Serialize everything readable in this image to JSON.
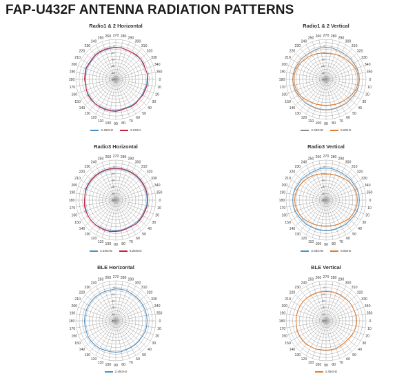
{
  "title": "FAP-U432F ANTENNA RADIATION PATTERNS",
  "colors": {
    "blue": "#4a90c8",
    "red": "#c8203e",
    "orange": "#e07b2e",
    "gray": "#8a8a8a",
    "grid": "#999999"
  },
  "axis": {
    "angle_labels": [
      "0",
      "10",
      "20",
      "30",
      "40",
      "50",
      "60",
      "70",
      "80",
      "90",
      "100",
      "110",
      "120",
      "130",
      "140",
      "150",
      "160",
      "170",
      "180",
      "190",
      "200",
      "210",
      "220",
      "230",
      "240",
      "250",
      "260",
      "270",
      "280",
      "290",
      "300",
      "310",
      "320",
      "330",
      "340",
      "350"
    ],
    "radial_labels": [
      "-50",
      "-40",
      "-30",
      "-20",
      "-10",
      "0"
    ]
  },
  "chart_data": [
    {
      "type": "polar",
      "title": "Radio1 & 2 Horizontal",
      "rlim": [
        -50,
        10
      ],
      "series": [
        {
          "name": "2.45GHz",
          "color": "#4a90c8",
          "values": [
            -3,
            -3,
            -4,
            -4,
            -4,
            -4,
            -4,
            -5,
            -4,
            -3,
            -3,
            -3,
            -3,
            -2,
            -3,
            -3,
            -3,
            -4,
            -4,
            -4,
            -3,
            -4,
            -4,
            -3,
            -3,
            -3,
            -3,
            -2,
            -2,
            -3,
            -3,
            -3,
            -2,
            -3,
            -3,
            -2
          ]
        },
        {
          "name": "5.6GHz",
          "color": "#c8203e",
          "values": [
            -2,
            -2,
            -3,
            -3,
            -4,
            -3,
            -3,
            -4,
            -3,
            -2,
            -2,
            -2,
            -2,
            -2,
            -2,
            -2,
            -3,
            -4,
            -3,
            -3,
            -2,
            -3,
            -3,
            -2,
            -2,
            -2,
            -2,
            -2,
            -2,
            -3,
            -3,
            -2,
            -2,
            -2,
            -3,
            -2
          ]
        }
      ]
    },
    {
      "type": "polar",
      "title": "Radio1 & 2 Vertical",
      "rlim": [
        -50,
        10
      ],
      "series": [
        {
          "name": "2.45GHz",
          "color": "#8a8a8a",
          "values": [
            0,
            0,
            -1,
            -2,
            -3,
            -3,
            -4,
            -4,
            -4,
            -4,
            -4,
            -4,
            -4,
            -3,
            -3,
            -2,
            -1,
            0,
            0,
            0,
            -1,
            -2,
            -2,
            -3,
            -3,
            -3,
            -2,
            -2,
            -2,
            -3,
            -3,
            -3,
            -2,
            -2,
            -1,
            0
          ]
        },
        {
          "name": "5.6GHz",
          "color": "#e07b2e",
          "values": [
            -2,
            -2,
            -3,
            -5,
            -7,
            -8,
            -9,
            -10,
            -11,
            -11,
            -11,
            -10,
            -9,
            -8,
            -6,
            -4,
            -3,
            -2,
            -2,
            -2,
            -3,
            -4,
            -6,
            -7,
            -8,
            -9,
            -10,
            -11,
            -11,
            -10,
            -9,
            -8,
            -7,
            -5,
            -3,
            -2
          ]
        }
      ]
    },
    {
      "type": "polar",
      "title": "Radio3 Horizontal",
      "rlim": [
        -50,
        10
      ],
      "series": [
        {
          "name": "2.45GHz",
          "color": "#4a90c8",
          "values": [
            -3,
            -3,
            -4,
            -4,
            -4,
            -5,
            -5,
            -5,
            -4,
            -4,
            -3,
            -3,
            -3,
            -2,
            -2,
            -2,
            -3,
            -3,
            -3,
            -3,
            -3,
            -3,
            -3,
            -3,
            -3,
            -3,
            -3,
            -3,
            -3,
            -3,
            -3,
            -3,
            -3,
            -3,
            -3,
            -3
          ]
        },
        {
          "name": "5.25GHz",
          "color": "#c8203e",
          "values": [
            -2,
            -2,
            -3,
            -3,
            -3,
            -3,
            -4,
            -4,
            -3,
            -3,
            -2,
            -2,
            -2,
            -2,
            -2,
            -2,
            -2,
            -2,
            -3,
            -3,
            -2,
            -2,
            -2,
            -2,
            -2,
            -2,
            -2,
            -2,
            -2,
            -2,
            -2,
            -2,
            -2,
            -2,
            -2,
            -2
          ]
        }
      ]
    },
    {
      "type": "polar",
      "title": "Radio3 Vertical",
      "rlim": [
        -50,
        10
      ],
      "series": [
        {
          "name": "2.45GHz",
          "color": "#4a90c8",
          "values": [
            0,
            0,
            -1,
            -2,
            -3,
            -3,
            -4,
            -4,
            -4,
            -4,
            -4,
            -4,
            -4,
            -3,
            -3,
            -2,
            -1,
            0,
            0,
            0,
            -1,
            -2,
            -2,
            -3,
            -3,
            -3,
            -2,
            -2,
            -2,
            -3,
            -3,
            -3,
            -2,
            -2,
            -1,
            0
          ]
        },
        {
          "name": "5.6GHz",
          "color": "#e07b2e",
          "values": [
            -3,
            -3,
            -4,
            -5,
            -6,
            -8,
            -9,
            -10,
            -11,
            -11,
            -11,
            -10,
            -9,
            -8,
            -6,
            -5,
            -4,
            -3,
            -3,
            -3,
            -4,
            -5,
            -6,
            -7,
            -8,
            -9,
            -10,
            -11,
            -11,
            -10,
            -9,
            -8,
            -6,
            -5,
            -4,
            -3
          ]
        }
      ]
    },
    {
      "type": "polar",
      "title": "BLE Horizontal",
      "rlim": [
        -50,
        10
      ],
      "series": [
        {
          "name": "2.45GHz",
          "color": "#4a90c8",
          "values": [
            -3,
            -3,
            -3,
            -4,
            -4,
            -4,
            -4,
            -4,
            -3,
            -3,
            -3,
            -3,
            -2,
            -2,
            -2,
            -2,
            -3,
            -3,
            -3,
            -3,
            -3,
            -3,
            -3,
            -3,
            -3,
            -3,
            -3,
            -2,
            -2,
            -2,
            -3,
            -3,
            -3,
            -3,
            -3,
            -3
          ]
        }
      ]
    },
    {
      "type": "polar",
      "title": "BLE Vertical",
      "rlim": [
        -50,
        10
      ],
      "series": [
        {
          "name": "2.45GHz",
          "color": "#e07b2e",
          "values": [
            -4,
            -4,
            -5,
            -6,
            -7,
            -7,
            -7,
            -6,
            -6,
            -6,
            -6,
            -5,
            -5,
            -4,
            -4,
            -4,
            -4,
            -5,
            -5,
            -5,
            -5,
            -5,
            -5,
            -5,
            -6,
            -6,
            -6,
            -6,
            -6,
            -6,
            -6,
            -6,
            -5,
            -5,
            -5,
            -4
          ]
        }
      ]
    }
  ]
}
